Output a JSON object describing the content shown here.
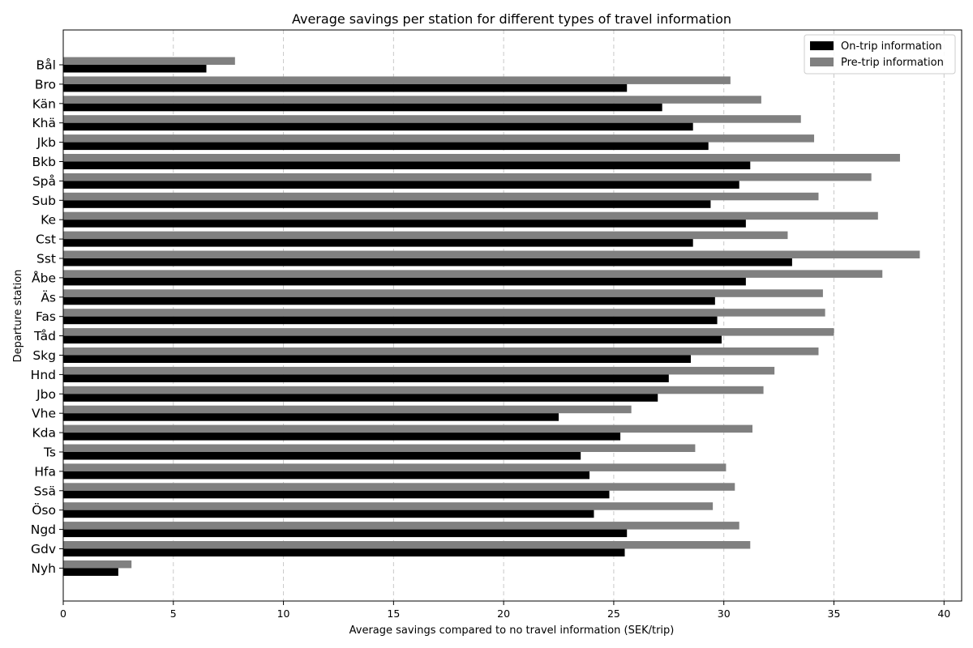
{
  "chart_data": {
    "type": "bar",
    "orientation": "horizontal",
    "title": "Average savings per station for different types of travel information",
    "xlabel": "Average savings compared to no travel information (SEK/trip)",
    "ylabel": "Departure station",
    "xlim": [
      0,
      40.8
    ],
    "xticks": [
      0,
      5,
      10,
      15,
      20,
      25,
      30,
      35,
      40
    ],
    "grid": "x",
    "legend_position": "top-right",
    "categories": [
      "Bål",
      "Bro",
      "Kän",
      "Khä",
      "Jkb",
      "Bkb",
      "Spå",
      "Sub",
      "Ke",
      "Cst",
      "Sst",
      "Åbe",
      "Äs",
      "Fas",
      "Tåd",
      "Skg",
      "Hnd",
      "Jbo",
      "Vhe",
      "Kda",
      "Ts",
      "Hfa",
      "Ssä",
      "Öso",
      "Ngd",
      "Gdv",
      "Nyh"
    ],
    "series": [
      {
        "name": "On-trip information",
        "color": "#000000",
        "values": [
          6.5,
          25.6,
          27.2,
          28.6,
          29.3,
          31.2,
          30.7,
          29.4,
          31.0,
          28.6,
          33.1,
          31.0,
          29.6,
          29.7,
          29.9,
          28.5,
          27.5,
          27.0,
          22.5,
          25.3,
          23.5,
          23.9,
          24.8,
          24.1,
          25.6,
          25.5,
          2.5
        ]
      },
      {
        "name": "Pre-trip information",
        "color": "#808080",
        "values": [
          7.8,
          30.3,
          31.7,
          33.5,
          34.1,
          38.0,
          36.7,
          34.3,
          37.0,
          32.9,
          38.9,
          37.2,
          34.5,
          34.6,
          35.0,
          34.3,
          32.3,
          31.8,
          25.8,
          31.3,
          28.7,
          30.1,
          30.5,
          29.5,
          30.7,
          31.2,
          3.1
        ]
      }
    ]
  }
}
